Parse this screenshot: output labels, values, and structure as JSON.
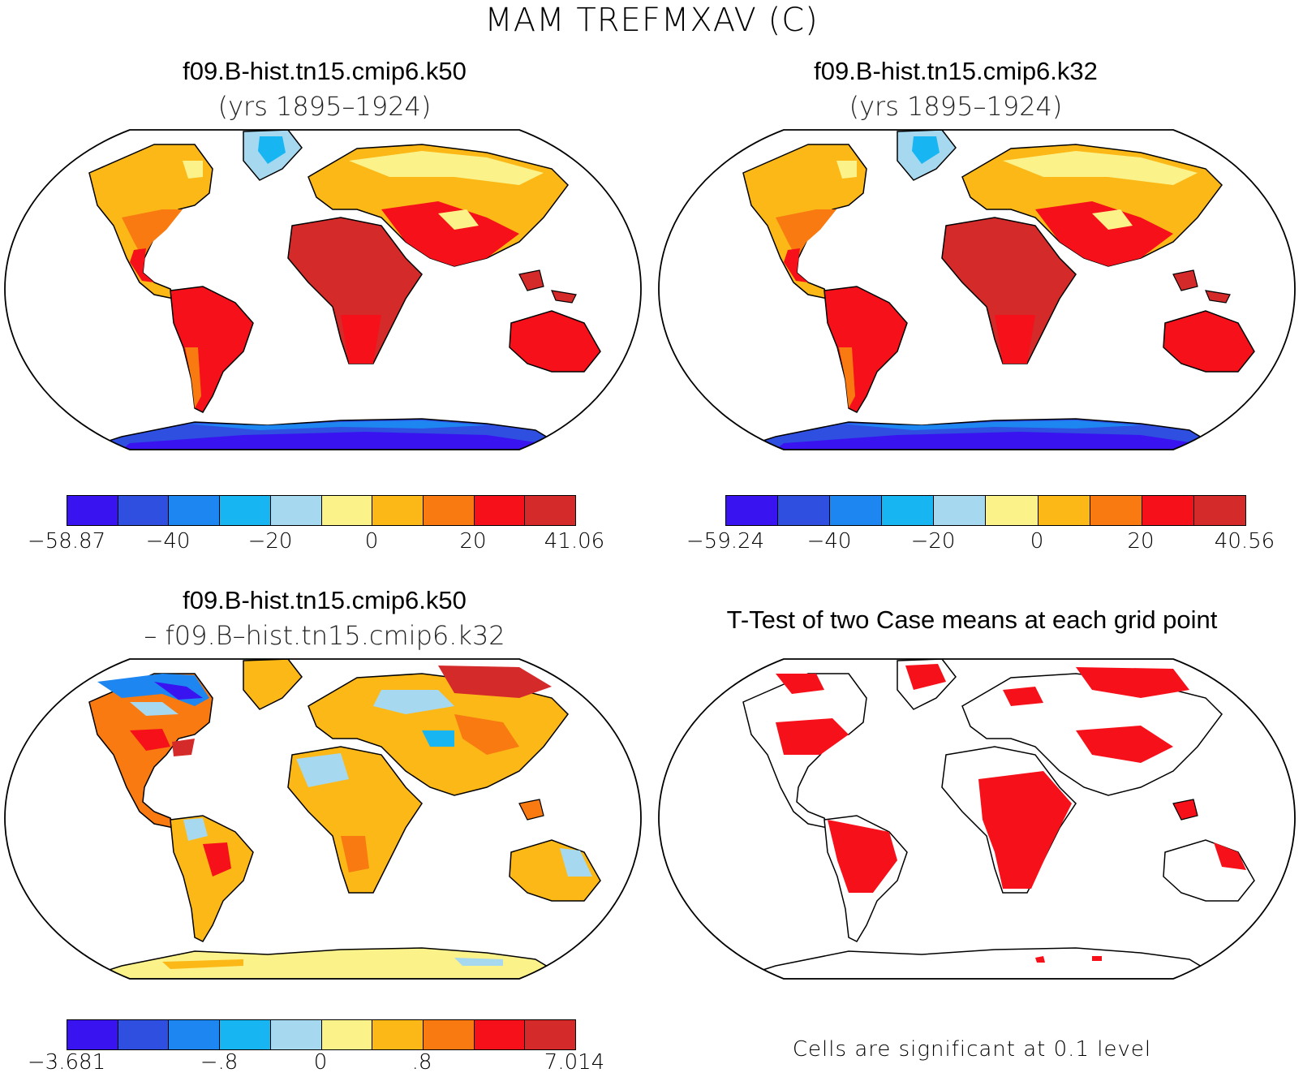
{
  "main_title": "MAM TREFMXAV (C)",
  "panels": {
    "top_left": {
      "title": "f09.B-hist.tn15.cmip6.k50",
      "subtitle": "(yrs 1895–1924)"
    },
    "top_right": {
      "title": "f09.B-hist.tn15.cmip6.k32",
      "subtitle": "(yrs 1895–1924)"
    },
    "bottom_left": {
      "title": "f09.B-hist.tn15.cmip6.k50",
      "subtitle": "– f09.B–hist.tn15.cmip6.k32"
    },
    "bottom_right": {
      "title": "T-Test of two Case means at each grid point",
      "note": "Cells are significant at 0.1 level"
    }
  },
  "colors": {
    "palette": [
      "#3a14f0",
      "#2e4fe0",
      "#1e86f0",
      "#17b6f2",
      "#a6d8f0",
      "#fbf28a",
      "#fbb817",
      "#f87a10",
      "#f5101a",
      "#d42a2a"
    ],
    "significant": "#f5101a",
    "coast": "#000000"
  },
  "colorbars": {
    "top_left": [
      "−58.87",
      "−40",
      "−20",
      "0",
      "20",
      "41.06"
    ],
    "top_right": [
      "−59.24",
      "−40",
      "−20",
      "0",
      "20",
      "40.56"
    ],
    "bottom_left": [
      "−3.681",
      "−.8",
      "0",
      ".8",
      "7.014"
    ]
  }
}
